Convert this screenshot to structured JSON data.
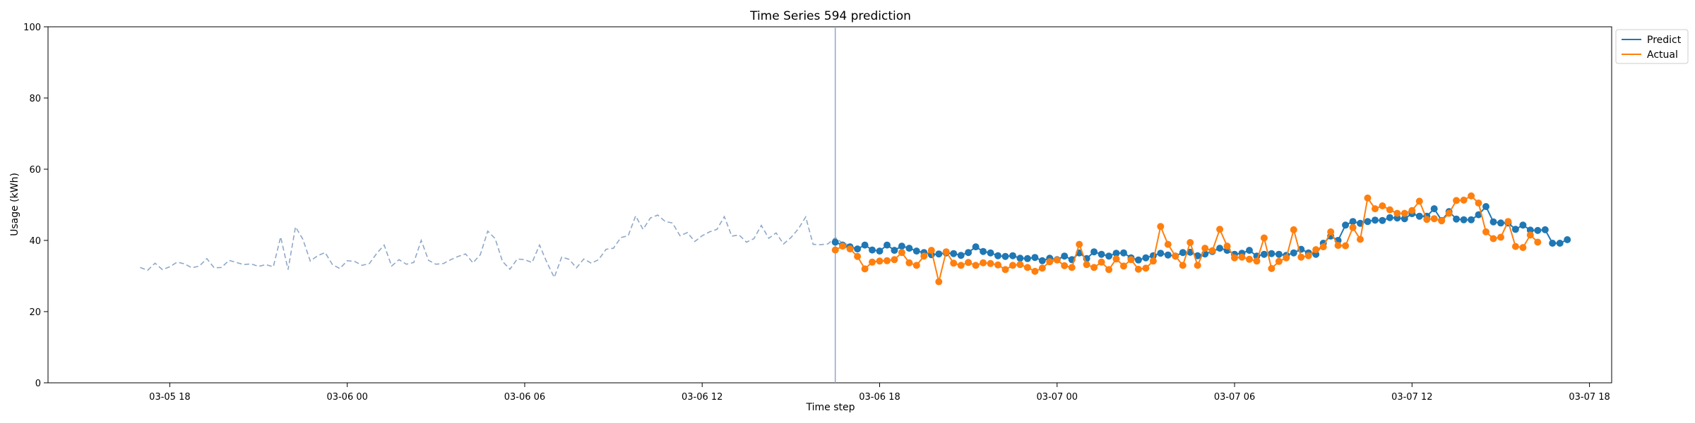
{
  "chart_data": {
    "type": "line",
    "title": "Time Series 594 prediction",
    "xlabel": "Time step",
    "ylabel": "Usage (kWh)",
    "ylim": [
      0,
      100
    ],
    "yticks": [
      0,
      20,
      40,
      60,
      80,
      100
    ],
    "xlim": [
      "03-05 13:53",
      "03-07 18:45"
    ],
    "xticks": [
      "03-05 18",
      "03-06 00",
      "03-06 06",
      "03-06 12",
      "03-06 18",
      "03-07 00",
      "03-07 06",
      "03-07 12",
      "03-07 18"
    ],
    "grid": false,
    "legend": "upper-right-outside",
    "forecast_start": "03-06 16:30",
    "colors": {
      "predict": "#1f77b4",
      "actual": "#ff7f0e",
      "history": "#8fa8c8",
      "divider": "#8fa8c8"
    },
    "history": {
      "start": "03-05 17:00",
      "step_minutes": 15,
      "values": [
        32.4,
        31.6,
        33.6,
        31.8,
        32.6,
        33.9,
        33.4,
        32.3,
        32.8,
        34.9,
        32.3,
        32.4,
        34.4,
        33.8,
        33.2,
        33.4,
        32.7,
        33.2,
        32.6,
        41.0,
        31.8,
        43.8,
        40.3,
        34.2,
        35.7,
        36.6,
        33.2,
        32.1,
        34.3,
        34.1,
        33.0,
        33.5,
        36.4,
        38.7,
        32.8,
        34.6,
        33.3,
        33.8,
        40.0,
        34.4,
        33.3,
        33.5,
        34.6,
        35.5,
        36.2,
        33.7,
        36.0,
        42.6,
        40.5,
        34.1,
        31.9,
        34.8,
        34.6,
        33.8,
        38.7,
        33.8,
        29.6,
        35.3,
        34.7,
        32.3,
        34.8,
        33.6,
        34.6,
        37.5,
        37.8,
        40.8,
        41.3,
        46.9,
        43.1,
        46.3,
        47.1,
        45.3,
        44.9,
        41.3,
        42.2,
        39.7,
        41.3,
        42.4,
        43.1,
        46.7,
        41.2,
        41.5,
        39.5,
        40.5,
        44.2,
        40.6,
        42.1,
        39.0,
        40.8,
        43.2,
        46.6,
        38.9,
        38.8,
        39.0,
        40.8,
        39.2,
        38.7
      ]
    },
    "series": [
      {
        "name": "Predict",
        "start": "03-06 16:30",
        "step_minutes": 15,
        "values": [
          39.5,
          38.7,
          38.2,
          37.6,
          38.7,
          37.3,
          37.0,
          38.7,
          37.2,
          38.4,
          37.8,
          37.0,
          36.6,
          36.0,
          36.2,
          36.5,
          36.3,
          35.8,
          36.6,
          38.2,
          36.9,
          36.5,
          35.7,
          35.5,
          35.7,
          35.0,
          34.9,
          35.2,
          34.3,
          35.0,
          34.6,
          35.6,
          34.6,
          36.5,
          34.9,
          36.8,
          36.1,
          35.6,
          36.4,
          36.5,
          35.1,
          34.5,
          35.1,
          35.7,
          36.4,
          35.9,
          35.6,
          36.6,
          36.7,
          35.7,
          36.2,
          36.9,
          37.8,
          37.2,
          36.1,
          36.4,
          37.2,
          35.6,
          36.1,
          36.3,
          36.1,
          35.8,
          36.5,
          37.5,
          36.5,
          36.1,
          39.2,
          41.2,
          40.0,
          44.3,
          45.3,
          44.8,
          45.3,
          45.7,
          45.6,
          46.4,
          46.3,
          46.1,
          47.5,
          46.8,
          46.8,
          48.9,
          45.6,
          48.1,
          46.0,
          45.8,
          45.8,
          47.2,
          49.5,
          45.2,
          44.9,
          44.9,
          43.1,
          44.3,
          42.9,
          42.8,
          43.0,
          39.2,
          39.2,
          40.2
        ]
      },
      {
        "name": "Actual",
        "start": "03-06 16:30",
        "step_minutes": 15,
        "values": [
          37.3,
          38.4,
          37.6,
          35.5,
          32.0,
          33.9,
          34.2,
          34.3,
          34.6,
          36.6,
          33.7,
          33.0,
          35.6,
          37.2,
          28.4,
          36.8,
          33.6,
          33.0,
          33.8,
          33.0,
          33.7,
          33.5,
          33.1,
          31.8,
          33.0,
          33.2,
          32.4,
          31.3,
          32.2,
          34.0,
          34.5,
          32.9,
          32.4,
          38.9,
          33.2,
          32.4,
          33.9,
          31.8,
          34.8,
          32.8,
          34.6,
          31.9,
          32.2,
          34.2,
          43.9,
          38.9,
          35.6,
          33.0,
          39.4,
          33.0,
          37.8,
          37.1,
          43.1,
          38.4,
          35.1,
          35.3,
          34.7,
          34.2,
          40.7,
          32.1,
          34.1,
          35.1,
          43.0,
          35.3,
          35.7,
          37.4,
          38.2,
          42.4,
          38.6,
          38.5,
          43.6,
          40.3,
          51.9,
          48.9,
          49.7,
          48.6,
          47.6,
          47.6,
          48.4,
          51.0,
          45.9,
          46.1,
          45.5,
          47.6,
          51.2,
          51.3,
          52.5,
          50.5,
          42.4,
          40.5,
          40.9,
          45.3,
          38.3,
          38.0,
          41.5,
          39.5
        ]
      }
    ]
  }
}
